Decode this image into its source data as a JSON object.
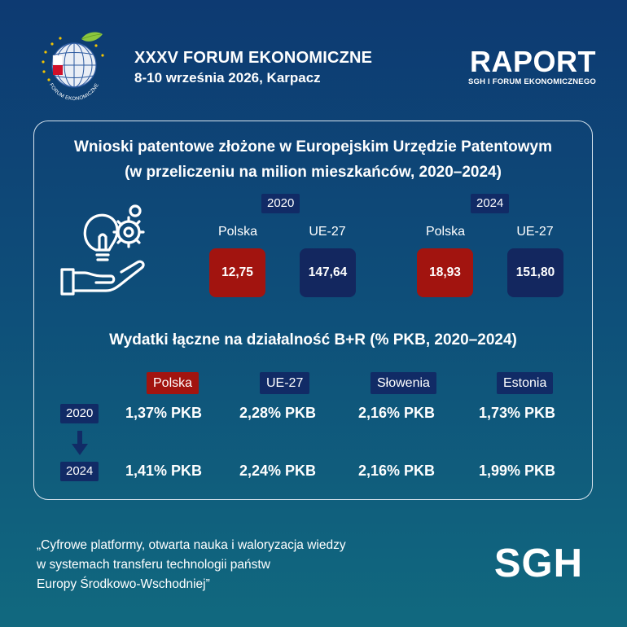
{
  "header": {
    "logo_caption": "FORUM EKONOMICZNE",
    "forum_title": "XXXV FORUM EKONOMICZNE",
    "forum_date": "8-10 września 2026, Karpacz",
    "raport_title": "RAPORT",
    "raport_subtitle": "SGH I FORUM EKONOMICZNEGO"
  },
  "patents": {
    "title_line1": "Wnioski patentowe złożone w Europejskim Urzędzie Patentowym",
    "title_line2": "(w przeliczeniu na milion mieszkańców, 2020–2024)",
    "icon": "innovation-lightbulb-gears-hand-icon",
    "groups": [
      {
        "year": "2020",
        "items": [
          {
            "label": "Polska",
            "value": "12,75"
          },
          {
            "label": "UE-27",
            "value": "147,64"
          }
        ]
      },
      {
        "year": "2024",
        "items": [
          {
            "label": "Polska",
            "value": "18,93"
          },
          {
            "label": "UE-27",
            "value": "151,80"
          }
        ]
      }
    ]
  },
  "rd": {
    "title": "Wydatki łączne na działalność B+R (% PKB, 2020–2024)",
    "countries": [
      "Polska",
      "UE-27",
      "Słowenia",
      "Estonia"
    ],
    "rows": [
      {
        "year": "2020",
        "values": [
          "1,37% PKB",
          "2,28% PKB",
          "2,16% PKB",
          "1,73% PKB"
        ]
      },
      {
        "year": "2024",
        "values": [
          "1,41% PKB",
          "2,24% PKB",
          "2,16% PKB",
          "1,99% PKB"
        ]
      }
    ],
    "arrow_icon": "arrow-down-icon"
  },
  "footer": {
    "quote_line1": "„Cyfrowe platformy, otwarta nauka i waloryzacja wiedzy",
    "quote_line2": "w systemach transferu technologii państw",
    "quote_line3": "Europy Środkowo-Wschodniej”",
    "sgh_logo": "SGH"
  },
  "colors": {
    "navy_box": "#13275f",
    "red_box": "#a2140f",
    "bg_top": "#0d3a72",
    "bg_bottom": "#11697f"
  }
}
